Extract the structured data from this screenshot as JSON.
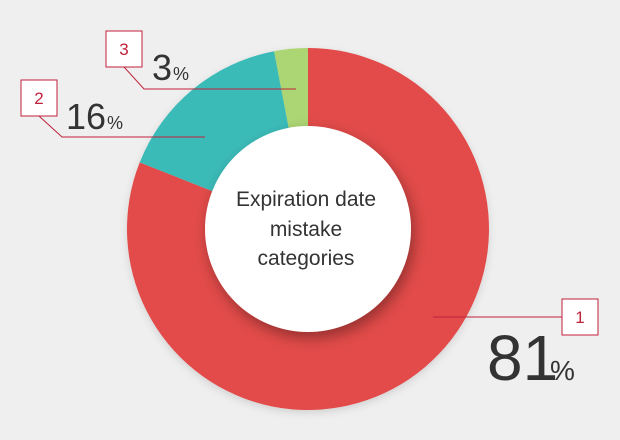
{
  "chart_data": {
    "type": "pie",
    "style": "donut",
    "center_label_lines": [
      "Expiration date",
      "mistake",
      "categories"
    ],
    "slices": [
      {
        "index": "1",
        "value": 81,
        "value_text": "81",
        "unit": "%",
        "color": "#e24b4a"
      },
      {
        "index": "2",
        "value": 16,
        "value_text": "16",
        "unit": "%",
        "color": "#3bbbb8"
      },
      {
        "index": "3",
        "value": 3,
        "value_text": "3",
        "unit": "%",
        "color": "#acd573"
      }
    ],
    "callout_color": "#c0223a",
    "background": "#efefef"
  }
}
